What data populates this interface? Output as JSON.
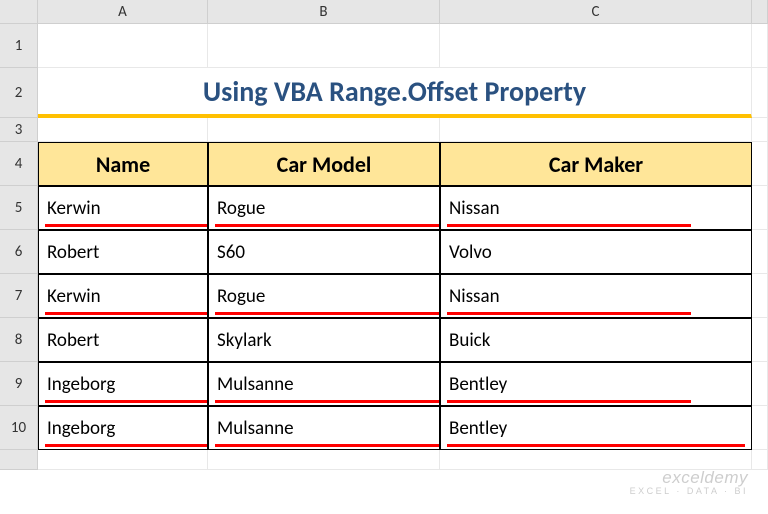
{
  "columns": [
    "A",
    "B",
    "C"
  ],
  "rowNumbers": [
    "1",
    "2",
    "3",
    "4",
    "5",
    "6",
    "7",
    "8",
    "9",
    "10"
  ],
  "title": {
    "text": "Using VBA Range.Offset Property",
    "color": "#2a5180",
    "underlineColor": "#ffc000"
  },
  "headers": {
    "values": [
      "Name",
      "Car Model",
      "Car Maker"
    ],
    "bgColor": "#ffe699",
    "textColor": "#000000"
  },
  "rows": [
    {
      "cells": [
        "Kerwin",
        "Rogue",
        "Nissan"
      ],
      "underlined": true,
      "lastShort": true
    },
    {
      "cells": [
        "Robert",
        "S60",
        "Volvo"
      ],
      "underlined": false,
      "lastShort": false
    },
    {
      "cells": [
        "Kerwin",
        "Rogue",
        "Nissan"
      ],
      "underlined": true,
      "lastShort": true
    },
    {
      "cells": [
        "Robert",
        "Skylark",
        "Buick"
      ],
      "underlined": false,
      "lastShort": false
    },
    {
      "cells": [
        "Ingeborg",
        "Mulsanne",
        "Bentley"
      ],
      "underlined": true,
      "lastShort": true
    },
    {
      "cells": [
        "Ingeborg",
        "Mulsanne",
        "Bentley"
      ],
      "underlined": true,
      "lastShort": false
    }
  ],
  "underlineColor": "#ff0000",
  "watermark": {
    "line1": "exceldemy",
    "line2": "EXCEL · DATA · BI"
  }
}
